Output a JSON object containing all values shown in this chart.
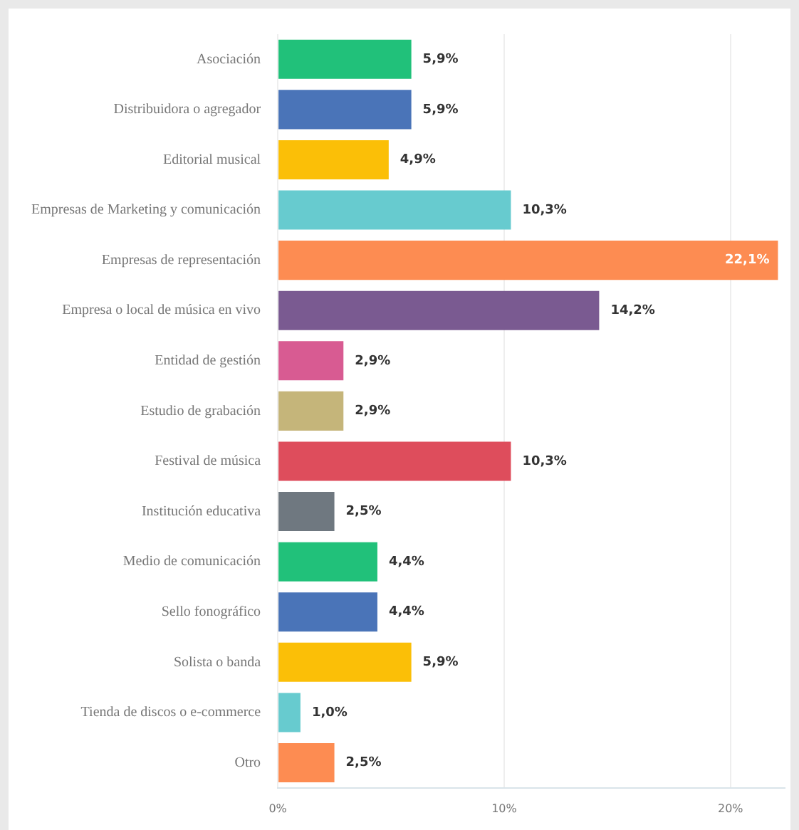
{
  "chart_data": {
    "type": "bar",
    "orientation": "horizontal",
    "categories": [
      "Asociación",
      "Distribuidora o agregador",
      "Editorial musical",
      "Empresas de Marketing y comunicación",
      "Empresas de representación",
      "Empresa o local de música en vivo",
      "Entidad de gestión",
      "Estudio de grabación",
      "Festival de música",
      "Institución educativa",
      "Medio de comunicación",
      "Sello fonográfico",
      "Solista o banda",
      "Tienda de discos o e-commerce",
      "Otro"
    ],
    "values": [
      5.9,
      5.9,
      4.9,
      10.3,
      22.1,
      14.2,
      2.9,
      2.9,
      10.3,
      2.5,
      4.4,
      4.4,
      5.9,
      1.0,
      2.5
    ],
    "colors": [
      "#21c17a",
      "#4a74b8",
      "#fbbf07",
      "#67cbcf",
      "#fd8c52",
      "#7a5a91",
      "#d85b92",
      "#c5b57a",
      "#de4d5c",
      "#6f7880",
      "#21c17a",
      "#4a74b8",
      "#fbbf07",
      "#67cbcf",
      "#fd8c52"
    ],
    "value_labels": [
      "5,9%",
      "5,9%",
      "4,9%",
      "10,3%",
      "22,1%",
      "14,2%",
      "2,9%",
      "2,9%",
      "10,3%",
      "2,5%",
      "4,4%",
      "4,4%",
      "5,9%",
      "1,0%",
      "2,5%"
    ],
    "xlim": [
      0,
      22.4
    ],
    "xticks": [
      {
        "value": 0,
        "label": "0%"
      },
      {
        "value": 10,
        "label": "10%"
      },
      {
        "value": 20,
        "label": "20%"
      }
    ],
    "grid": "x",
    "legend": false
  }
}
